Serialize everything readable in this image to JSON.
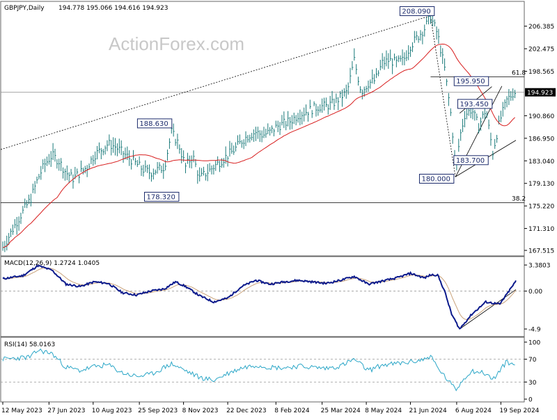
{
  "colors": {
    "price_bar": "#1a7a7a",
    "ma": "#d81e1e",
    "macd_main": "#0b1a8c",
    "macd_signal": "#c9a27a",
    "rsi": "#2aa6c7",
    "label_border": "#1b2a6b",
    "grid": "#999999"
  },
  "header": {
    "symbol": "GBPJPY,Daily",
    "ohlc": "194.778 195.066 194.616 194.923",
    "watermark": "ActionForex.com"
  },
  "chart_data": [
    {
      "type": "line",
      "name": "price",
      "title": "GBPJPY,Daily",
      "y_ticks": [
        "206.385",
        "202.475",
        "198.565",
        "194.923",
        "190.860",
        "186.950",
        "183.040",
        "179.130",
        "175.220",
        "171.310",
        "167.515"
      ],
      "ylim": [
        166.8,
        210.2
      ],
      "current_price": 194.923,
      "current_price_label": "194.923",
      "fib_labels": [
        {
          "text": "61.8",
          "level": 197.6
        },
        {
          "text": "38.2",
          "level": 175.8
        }
      ],
      "annotations": [
        {
          "text": "208.090",
          "date": "2024-07-11"
        },
        {
          "text": "188.630",
          "date": "2023-10-25"
        },
        {
          "text": "178.320",
          "date": "2023-11-01"
        },
        {
          "text": "195.950",
          "date": "2024-09-03"
        },
        {
          "text": "193.450",
          "date": "2024-08-14"
        },
        {
          "text": "183.700",
          "date": "2024-09-11"
        },
        {
          "text": "180.000",
          "date": "2024-08-05"
        }
      ],
      "series": [
        {
          "values": [
            [
              "2023-05-12",
              168.0
            ],
            [
              "2023-05-26",
              172.5
            ],
            [
              "2023-06-09",
              176.5
            ],
            [
              "2023-06-16",
              180.0
            ],
            [
              "2023-06-23",
              182.5
            ],
            [
              "2023-06-30",
              184.0
            ],
            [
              "2023-07-07",
              183.0
            ],
            [
              "2023-07-14",
              181.0
            ],
            [
              "2023-07-21",
              180.0
            ],
            [
              "2023-07-28",
              181.0
            ],
            [
              "2023-08-04",
              182.0
            ],
            [
              "2023-08-11",
              184.0
            ],
            [
              "2023-08-18",
              185.0
            ],
            [
              "2023-08-25",
              186.0
            ],
            [
              "2023-09-01",
              185.5
            ],
            [
              "2023-09-08",
              184.5
            ],
            [
              "2023-09-15",
              183.5
            ],
            [
              "2023-09-22",
              182.5
            ],
            [
              "2023-09-29",
              181.5
            ],
            [
              "2023-10-06",
              181.0
            ],
            [
              "2023-10-13",
              181.5
            ],
            [
              "2023-10-20",
              182.0
            ],
            [
              "2023-10-27",
              188.0
            ],
            [
              "2023-11-03",
              186.0
            ],
            [
              "2023-11-10",
              182.0
            ],
            [
              "2023-11-17",
              184.0
            ],
            [
              "2023-11-24",
              180.0
            ],
            [
              "2023-12-01",
              181.0
            ],
            [
              "2023-12-08",
              182.0
            ],
            [
              "2023-12-15",
              183.0
            ],
            [
              "2023-12-22",
              184.0
            ],
            [
              "2023-12-29",
              185.0
            ],
            [
              "2024-01-05",
              186.5
            ],
            [
              "2024-01-12",
              187.5
            ],
            [
              "2024-01-19",
              188.0
            ],
            [
              "2024-01-26",
              187.5
            ],
            [
              "2024-02-02",
              188.0
            ],
            [
              "2024-02-09",
              189.0
            ],
            [
              "2024-02-16",
              189.5
            ],
            [
              "2024-02-23",
              190.0
            ],
            [
              "2024-03-01",
              191.0
            ],
            [
              "2024-03-08",
              191.5
            ],
            [
              "2024-03-15",
              192.0
            ],
            [
              "2024-03-22",
              192.5
            ],
            [
              "2024-03-29",
              192.5
            ],
            [
              "2024-04-05",
              193.0
            ],
            [
              "2024-04-12",
              194.0
            ],
            [
              "2024-04-19",
              195.0
            ],
            [
              "2024-04-26",
              200.5
            ],
            [
              "2024-05-03",
              195.0
            ],
            [
              "2024-05-10",
              196.5
            ],
            [
              "2024-05-17",
              197.0
            ],
            [
              "2024-05-24",
              200.0
            ],
            [
              "2024-05-31",
              200.5
            ],
            [
              "2024-06-07",
              200.0
            ],
            [
              "2024-06-14",
              200.5
            ],
            [
              "2024-06-21",
              203.0
            ],
            [
              "2024-06-28",
              204.5
            ],
            [
              "2024-07-05",
              206.0
            ],
            [
              "2024-07-11",
              208.0
            ],
            [
              "2024-07-18",
              205.0
            ],
            [
              "2024-07-25",
              199.0
            ],
            [
              "2024-08-01",
              190.0
            ],
            [
              "2024-08-05",
              181.0
            ],
            [
              "2024-08-09",
              187.0
            ],
            [
              "2024-08-14",
              191.0
            ],
            [
              "2024-08-21",
              192.0
            ],
            [
              "2024-08-28",
              189.0
            ],
            [
              "2024-09-04",
              192.0
            ],
            [
              "2024-09-11",
              184.5
            ],
            [
              "2024-09-18",
              190.0
            ],
            [
              "2024-09-25",
              193.5
            ],
            [
              "2024-10-02",
              195.0
            ],
            [
              "2024-10-04",
              194.9
            ]
          ]
        }
      ]
    },
    {
      "type": "line",
      "name": "MACD",
      "label": "MACD(12,26,9) 1.2724 1.0405",
      "y_ticks": [
        "3.3803",
        "0.00",
        "-4.9"
      ],
      "ylim": [
        -5.7,
        4.2
      ],
      "series": [
        {
          "values": [
            [
              "2023-05-12",
              1.6
            ],
            [
              "2023-06-01",
              2.0
            ],
            [
              "2023-06-16",
              3.3
            ],
            [
              "2023-06-30",
              2.7
            ],
            [
              "2023-07-14",
              0.9
            ],
            [
              "2023-07-28",
              0.6
            ],
            [
              "2023-08-11",
              1.2
            ],
            [
              "2023-08-25",
              1.0
            ],
            [
              "2023-09-08",
              -0.2
            ],
            [
              "2023-09-22",
              -0.5
            ],
            [
              "2023-10-06",
              0.0
            ],
            [
              "2023-10-20",
              0.3
            ],
            [
              "2023-10-31",
              1.2
            ],
            [
              "2023-11-10",
              0.6
            ],
            [
              "2023-11-24",
              -0.6
            ],
            [
              "2023-12-08",
              -1.4
            ],
            [
              "2023-12-22",
              -0.9
            ],
            [
              "2024-01-05",
              0.6
            ],
            [
              "2024-01-19",
              1.4
            ],
            [
              "2024-02-02",
              0.9
            ],
            [
              "2024-02-16",
              1.2
            ],
            [
              "2024-03-01",
              1.4
            ],
            [
              "2024-03-15",
              1.2
            ],
            [
              "2024-03-29",
              1.0
            ],
            [
              "2024-04-12",
              1.4
            ],
            [
              "2024-04-26",
              1.9
            ],
            [
              "2024-05-10",
              0.9
            ],
            [
              "2024-05-24",
              1.3
            ],
            [
              "2024-06-07",
              1.7
            ],
            [
              "2024-06-21",
              2.3
            ],
            [
              "2024-07-05",
              1.7
            ],
            [
              "2024-07-11",
              2.1
            ],
            [
              "2024-07-18",
              2.1
            ],
            [
              "2024-07-25",
              0.0
            ],
            [
              "2024-08-01",
              -3.0
            ],
            [
              "2024-08-09",
              -4.9
            ],
            [
              "2024-08-21",
              -3.0
            ],
            [
              "2024-09-04",
              -1.4
            ],
            [
              "2024-09-18",
              -1.7
            ],
            [
              "2024-10-04",
              1.3
            ]
          ]
        }
      ]
    },
    {
      "type": "line",
      "name": "RSI",
      "label": "RSI(14) 58.0163",
      "y_ticks": [
        "100",
        "70",
        "30",
        "0"
      ],
      "ylim": [
        0,
        100
      ],
      "series": [
        {
          "values": [
            [
              "2023-05-12",
              70
            ],
            [
              "2023-05-26",
              72
            ],
            [
              "2023-06-09",
              74
            ],
            [
              "2023-06-16",
              86
            ],
            [
              "2023-06-30",
              80
            ],
            [
              "2023-07-14",
              56
            ],
            [
              "2023-07-28",
              50
            ],
            [
              "2023-08-11",
              57
            ],
            [
              "2023-08-25",
              60
            ],
            [
              "2023-09-08",
              46
            ],
            [
              "2023-09-22",
              40
            ],
            [
              "2023-10-06",
              43
            ],
            [
              "2023-10-27",
              62
            ],
            [
              "2023-11-10",
              50
            ],
            [
              "2023-11-24",
              38
            ],
            [
              "2023-12-08",
              33
            ],
            [
              "2023-12-22",
              45
            ],
            [
              "2024-01-05",
              55
            ],
            [
              "2024-01-19",
              60
            ],
            [
              "2024-02-02",
              56
            ],
            [
              "2024-02-16",
              55
            ],
            [
              "2024-03-01",
              58
            ],
            [
              "2024-03-15",
              56
            ],
            [
              "2024-03-29",
              54
            ],
            [
              "2024-04-12",
              58
            ],
            [
              "2024-04-26",
              70
            ],
            [
              "2024-05-10",
              50
            ],
            [
              "2024-05-24",
              60
            ],
            [
              "2024-06-07",
              62
            ],
            [
              "2024-06-21",
              65
            ],
            [
              "2024-07-05",
              70
            ],
            [
              "2024-07-11",
              76
            ],
            [
              "2024-07-18",
              55
            ],
            [
              "2024-07-25",
              40
            ],
            [
              "2024-08-01",
              25
            ],
            [
              "2024-08-05",
              16
            ],
            [
              "2024-08-14",
              38
            ],
            [
              "2024-08-21",
              50
            ],
            [
              "2024-09-04",
              45
            ],
            [
              "2024-09-11",
              34
            ],
            [
              "2024-09-25",
              66
            ],
            [
              "2024-10-04",
              58
            ]
          ]
        }
      ]
    }
  ],
  "x_ticks": [
    {
      "label": "12 May 2023",
      "date": "2023-05-12"
    },
    {
      "label": "27 Jun 2023",
      "date": "2023-06-27"
    },
    {
      "label": "10 Aug 2023",
      "date": "2023-08-10"
    },
    {
      "label": "25 Sep 2023",
      "date": "2023-09-25"
    },
    {
      "label": "8 Nov 2023",
      "date": "2023-11-08"
    },
    {
      "label": "22 Dec 2023",
      "date": "2023-12-22"
    },
    {
      "label": "8 Feb 2024",
      "date": "2024-02-08"
    },
    {
      "label": "25 Mar 2024",
      "date": "2024-03-25"
    },
    {
      "label": "8 May 2024",
      "date": "2024-05-08"
    },
    {
      "label": "21 Jun 2024",
      "date": "2024-06-21"
    },
    {
      "label": "6 Aug 2024",
      "date": "2024-08-06"
    },
    {
      "label": "19 Sep 2024",
      "date": "2024-09-19"
    }
  ]
}
